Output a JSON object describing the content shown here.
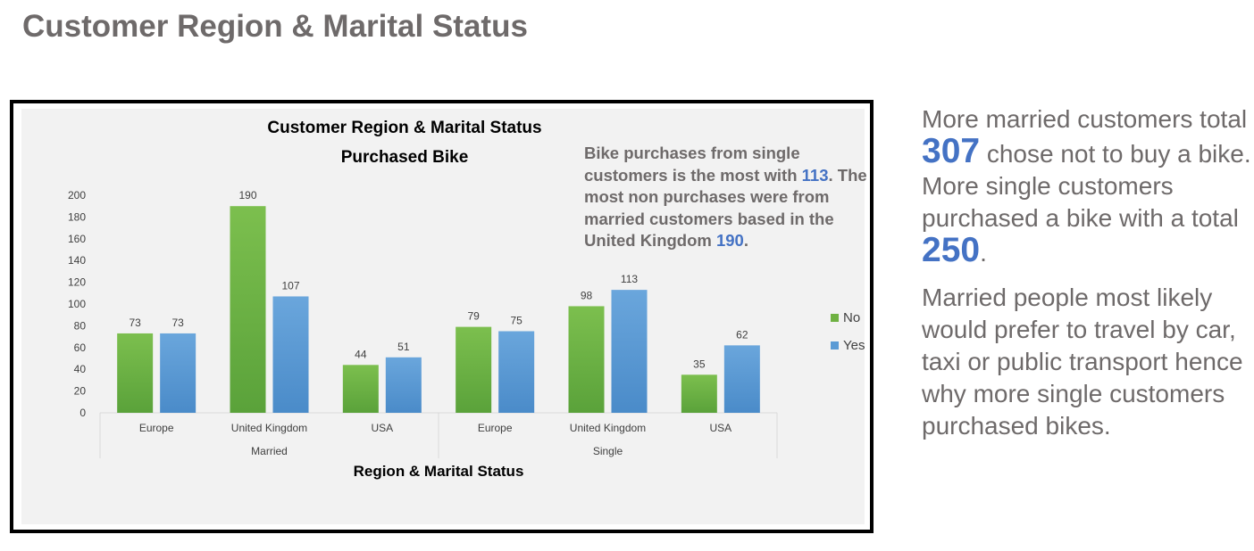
{
  "page_title": "Customer Region & Marital Status",
  "colors": {
    "no": "#6fb142",
    "yes": "#5b9bd5",
    "highlight": "#4472c4",
    "text_gray": "#6e6a6a"
  },
  "annotation": {
    "part1": "Bike purchases from single customers is the most with ",
    "value1": "113",
    "part2": ". The most non purchases were from married customers based in the United Kingdom ",
    "value2": "190",
    "part3": "."
  },
  "side_text": {
    "p1_a": "More married customers total ",
    "p1_num1": "307",
    "p1_b": " chose not to buy a bike. More single customers purchased a bike with a total ",
    "p1_num2": "250",
    "p1_c": ".",
    "p2": "Married people most likely would prefer to travel by car, taxi or public transport hence why more single customers purchased bikes."
  },
  "chart_data": {
    "type": "bar",
    "title": "Customer Region & Marital Status",
    "subtitle": "Purchased Bike",
    "xlabel": "Region & Marital Status",
    "ylabel": "",
    "ylim": [
      0,
      200
    ],
    "yticks": [
      0,
      20,
      40,
      60,
      80,
      100,
      120,
      140,
      160,
      180,
      200
    ],
    "groups": [
      "Married",
      "Single"
    ],
    "categories": [
      "Europe",
      "United Kingdom",
      "USA",
      "Europe",
      "United Kingdom",
      "USA"
    ],
    "series": [
      {
        "name": "No",
        "values": [
          73,
          190,
          44,
          79,
          98,
          35
        ]
      },
      {
        "name": "Yes",
        "values": [
          73,
          107,
          51,
          75,
          113,
          62
        ]
      }
    ],
    "grid": false,
    "legend": "right"
  }
}
